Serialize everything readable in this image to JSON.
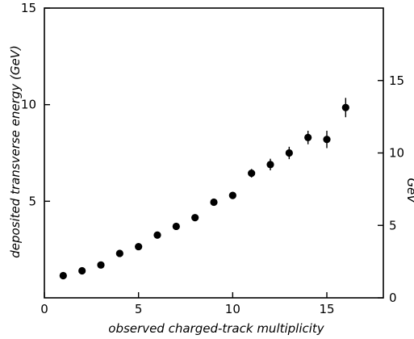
{
  "chart_data": {
    "type": "scatter",
    "title": "",
    "xlabel": "observed charged-track multiplicity",
    "ylabel": "deposited transverse energy (GeV)",
    "y2label": "GeV",
    "xlim": [
      0,
      18
    ],
    "ylim": [
      0,
      15
    ],
    "y2lim": [
      0,
      20
    ],
    "x_ticks": [
      0,
      5,
      10,
      15
    ],
    "y_ticks": [
      5,
      10,
      15
    ],
    "y2_ticks": [
      0,
      5,
      10,
      15
    ],
    "grid": false,
    "series": [
      {
        "x": [
          1,
          2,
          3,
          4,
          5,
          6,
          7,
          8,
          9,
          10,
          11,
          12,
          13,
          14,
          15,
          16
        ],
        "y": [
          1.15,
          1.4,
          1.7,
          2.3,
          2.65,
          3.25,
          3.7,
          4.15,
          4.95,
          5.3,
          6.45,
          6.9,
          7.5,
          8.3,
          8.2,
          9.85
        ],
        "yerr": [
          0.1,
          0.1,
          0.1,
          0.12,
          0.12,
          0.15,
          0.18,
          0.18,
          0.15,
          0.18,
          0.22,
          0.3,
          0.32,
          0.35,
          0.45,
          0.5
        ]
      }
    ]
  }
}
